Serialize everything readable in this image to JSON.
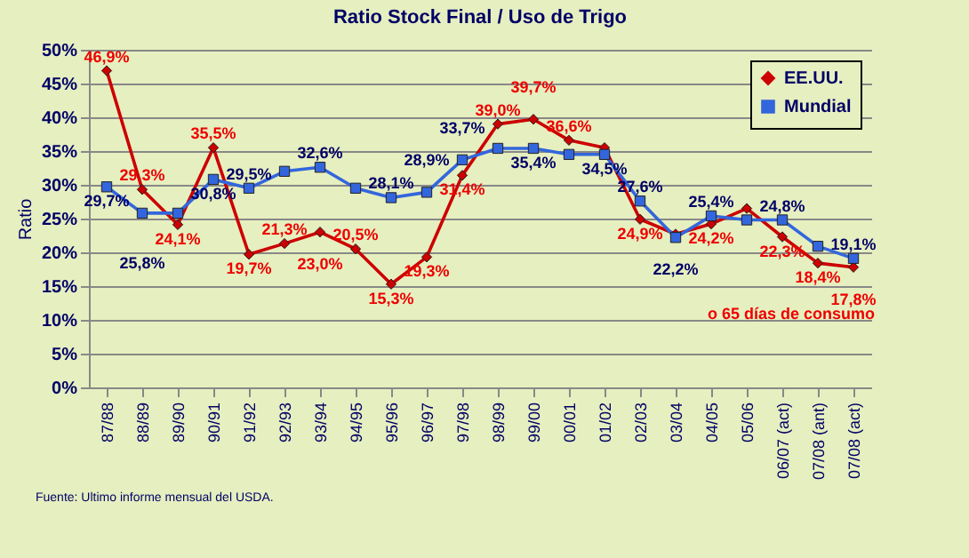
{
  "chart_data": {
    "type": "line",
    "title": "Ratio Stock Final / Uso de Trigo",
    "ylabel": "Ratio",
    "categories": [
      "87/88",
      "88/89",
      "89/90",
      "90/91",
      "91/92",
      "92/93",
      "93/94",
      "94/95",
      "95/96",
      "96/97",
      "97/98",
      "98/99",
      "99/00",
      "00/01",
      "01/02",
      "02/03",
      "03/04",
      "04/05",
      "05/06",
      "06/07 (act)",
      "07/08 (ant)",
      "07/08 (act)"
    ],
    "series": [
      {
        "name": "EE.UU.",
        "color": "#cc0000",
        "marker": "diamond",
        "values": [
          46.9,
          29.3,
          24.1,
          35.5,
          19.7,
          21.3,
          23.0,
          20.5,
          15.3,
          19.3,
          31.4,
          39.0,
          39.7,
          36.6,
          35.5,
          24.9,
          22.7,
          24.2,
          26.5,
          22.3,
          18.4,
          17.8
        ],
        "value_labels": [
          "46,9%",
          "29,3%",
          "24,1%",
          "35,5%",
          "19,7%",
          "21,3%",
          "23,0%",
          "20,5%",
          "15,3%",
          "19,3%",
          "31,4%",
          "39,0%",
          "39,7%",
          "36,6%",
          null,
          "24,9%",
          null,
          "24,2%",
          null,
          "22,3%",
          "18,4%",
          "17,8%"
        ]
      },
      {
        "name": "Mundial",
        "color": "#3366dd",
        "marker": "square",
        "values": [
          29.7,
          25.8,
          25.8,
          30.8,
          29.5,
          32.0,
          32.6,
          29.5,
          28.1,
          28.9,
          33.7,
          35.4,
          35.4,
          34.5,
          34.5,
          27.6,
          22.2,
          25.4,
          24.8,
          24.8,
          20.9,
          19.1
        ],
        "value_labels": [
          "29,7%",
          "25,8%",
          null,
          "30,8%",
          "29,5%",
          null,
          "32,6%",
          null,
          "28,1%",
          "28,9%",
          "33,7%",
          null,
          "35,4%",
          null,
          "34,5%",
          "27,6%",
          "22,2%",
          "25,4%",
          null,
          "24,8%",
          null,
          "19,1%"
        ]
      }
    ],
    "ylim": [
      0,
      50
    ],
    "yticks": [
      {
        "value": 0,
        "label": "0%"
      },
      {
        "value": 5,
        "label": "5%"
      },
      {
        "value": 10,
        "label": "10%"
      },
      {
        "value": 15,
        "label": "15%"
      },
      {
        "value": 20,
        "label": "20%"
      },
      {
        "value": 25,
        "label": "25%"
      },
      {
        "value": 30,
        "label": "30%"
      },
      {
        "value": 35,
        "label": "35%"
      },
      {
        "value": 40,
        "label": "40%"
      },
      {
        "value": 45,
        "label": "45%"
      },
      {
        "value": 50,
        "label": "50%"
      }
    ],
    "grid": "y",
    "legend": "top right",
    "annotations": [
      {
        "text": "o 65 días de consumo",
        "x": "07/08 (act)",
        "y": 17.8
      },
      "Fuente: Ultimo informe mensual del USDA."
    ]
  }
}
